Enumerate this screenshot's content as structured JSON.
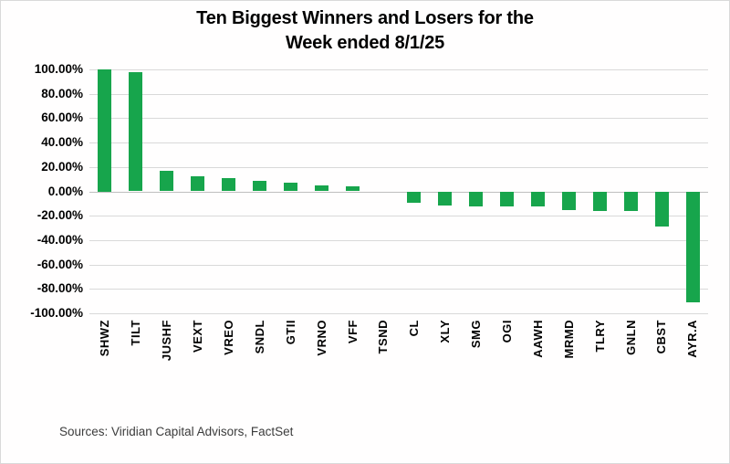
{
  "title": {
    "line1": "Ten Biggest Winners and Losers for the",
    "line2": "Week ended 8/1/25"
  },
  "source_note": "Sources: Viridian Capital Advisors, FactSet",
  "colors": {
    "bar": "#17a54c",
    "gridline": "#d9d9d9",
    "zero_line": "#bfbfbf",
    "text": "#000000",
    "source_text": "#3c3c3c"
  },
  "y_axis": {
    "tick_labels": [
      "100.00%",
      "80.00%",
      "60.00%",
      "40.00%",
      "20.00%",
      "0.00%",
      "-20.00%",
      "-40.00%",
      "-60.00%",
      "-80.00%",
      "-100.00%"
    ]
  },
  "chart_data": {
    "type": "bar",
    "title": "Ten Biggest Winners and Losers for the Week ended 8/1/25",
    "categories": [
      "SHWZ",
      "TILT",
      "JUSHF",
      "VEXT",
      "VREO",
      "SNDL",
      "GTII",
      "VRNO",
      "VFF",
      "TSND",
      "CL",
      "XLY",
      "SMG",
      "OGI",
      "AAWH",
      "MRMD",
      "TLRY",
      "GNLN",
      "CBST",
      "AYR.A"
    ],
    "values": [
      100.0,
      98.0,
      17.0,
      12.7,
      11.0,
      8.3,
      7.0,
      4.6,
      4.2,
      0.0,
      -9.0,
      -11.8,
      -12.0,
      -12.2,
      -12.2,
      -15.3,
      -16.0,
      -16.2,
      -29.0,
      -91.0
    ],
    "xlabel": "",
    "ylabel": "",
    "ylim": [
      -100,
      100
    ],
    "ytick_step": 20,
    "ytick_format": "0.00%",
    "grid": true,
    "legend": false,
    "bar_color": "#17a54c",
    "units": "percent weekly return"
  }
}
